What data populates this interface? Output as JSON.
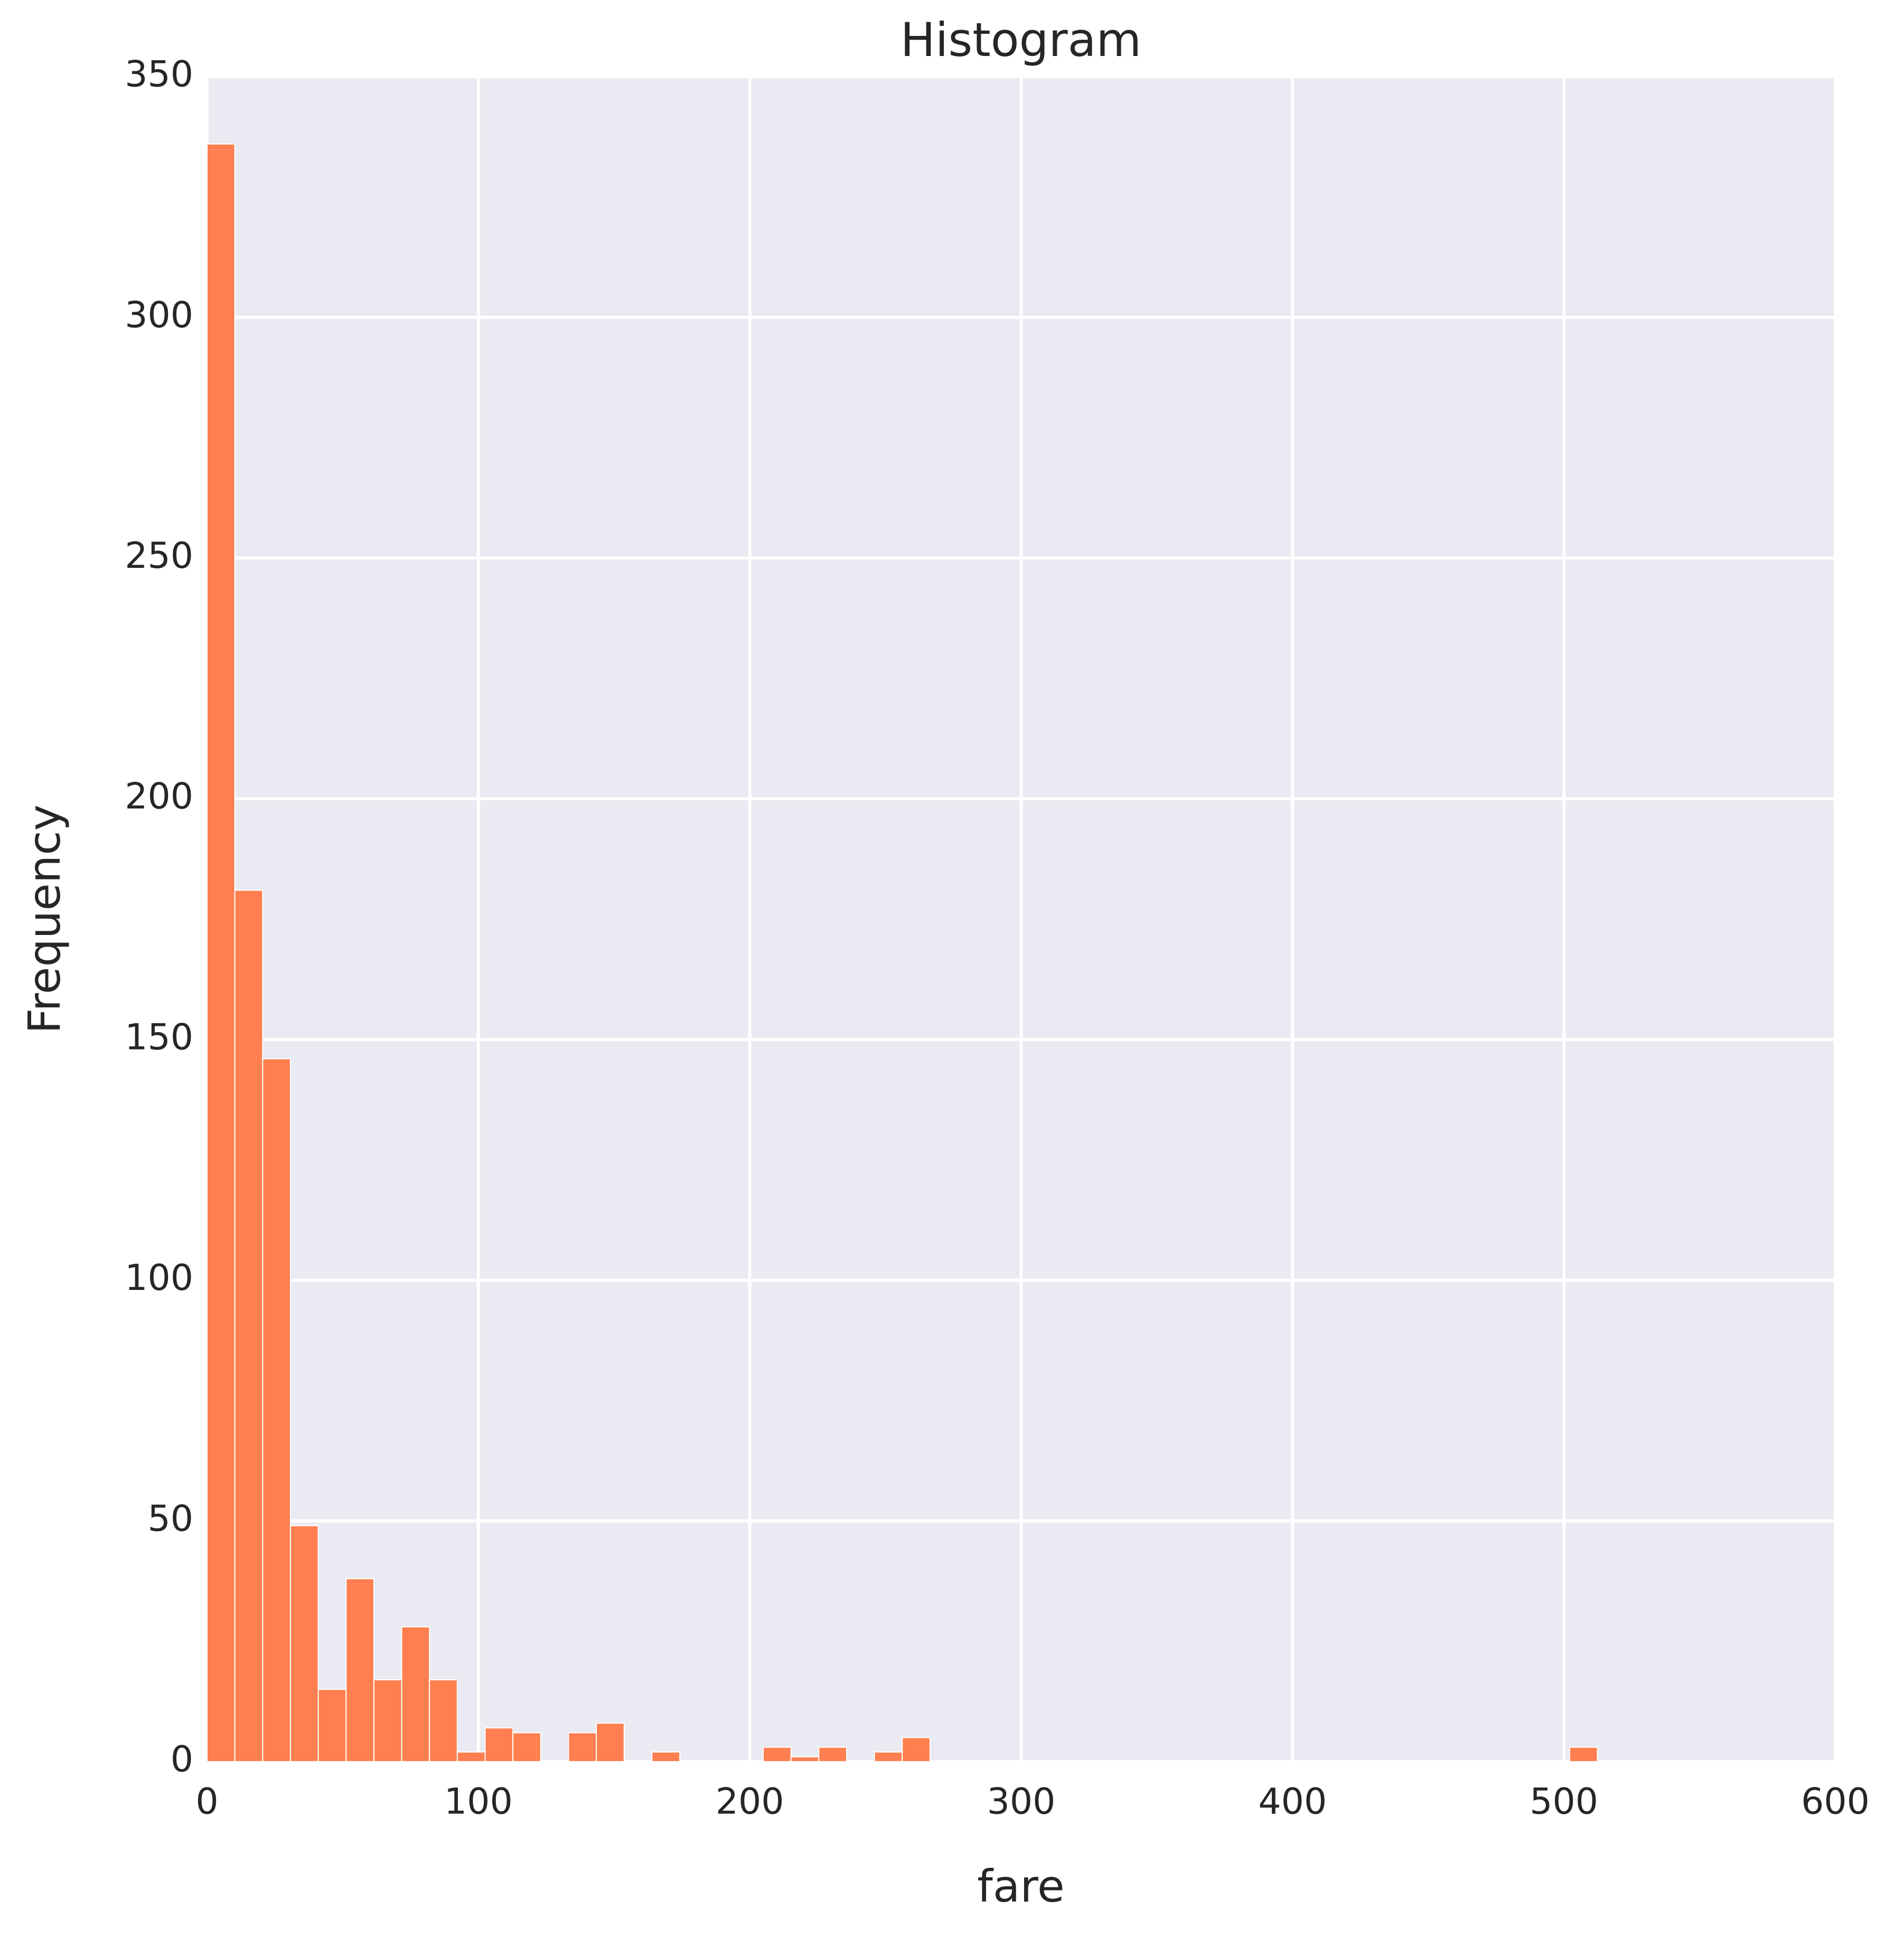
{
  "chart_data": {
    "type": "histogram",
    "title": "Histogram",
    "x_label": "fare",
    "y_label": "Frequency",
    "color": "#ff7f50",
    "bins": [
      0,
      10.2466,
      20.4932,
      30.7398,
      40.9863,
      51.2329,
      61.4795,
      71.7261,
      81.9727,
      92.2192,
      102.4658,
      112.7124,
      122.959,
      133.2056,
      143.4521,
      153.6987,
      163.9453,
      174.1919,
      184.4385,
      194.685,
      204.9316,
      215.1782,
      225.4248,
      235.6714,
      245.9179,
      256.1645,
      266.4111,
      276.6577,
      286.9043,
      297.1508,
      307.3974,
      317.644,
      327.8906,
      338.1372,
      348.3837,
      358.6303,
      368.8769,
      379.1235,
      389.3701,
      399.6166,
      409.8632,
      420.1098,
      430.3564,
      440.603,
      450.8495,
      461.0961,
      471.3427,
      481.5893,
      491.8359,
      502.0824,
      512.329
    ],
    "values": [
      336,
      181,
      146,
      49,
      15,
      38,
      17,
      28,
      17,
      2,
      7,
      6,
      0,
      6,
      8,
      0,
      2,
      0,
      0,
      0,
      3,
      1,
      3,
      0,
      2,
      5,
      0,
      0,
      0,
      0,
      0,
      0,
      0,
      0,
      0,
      0,
      0,
      0,
      0,
      0,
      0,
      0,
      0,
      0,
      0,
      0,
      0,
      0,
      0,
      3
    ],
    "xlim": [
      0,
      600
    ],
    "ylim": [
      0,
      350
    ],
    "xticks": [
      0,
      100,
      200,
      300,
      400,
      500,
      600
    ],
    "yticks": [
      0,
      50,
      100,
      150,
      200,
      250,
      300,
      350
    ],
    "grid": true
  }
}
